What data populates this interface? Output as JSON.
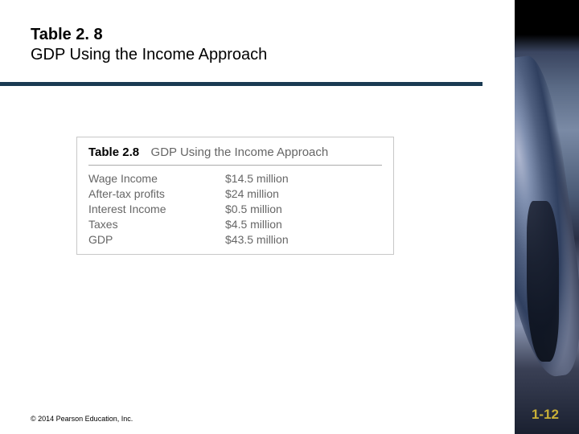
{
  "header": {
    "table_number": "Table 2. 8",
    "title": "GDP Using the Income Approach"
  },
  "divider_color": "#1a3a52",
  "figure": {
    "label": "Table 2.8",
    "caption": "GDP Using the Income Approach",
    "rows": [
      {
        "label": "Wage Income",
        "value": "$14.5 million"
      },
      {
        "label": "After-tax profits",
        "value": "$24 million"
      },
      {
        "label": "Interest Income",
        "value": "$0.5 million"
      },
      {
        "label": "Taxes",
        "value": "$4.5 million"
      },
      {
        "label": "GDP",
        "value": "$43.5 million"
      }
    ]
  },
  "footer": {
    "copyright": "© 2014 Pearson Education, Inc.",
    "page": "1-12"
  },
  "colors": {
    "page_number": "#c9b037",
    "figure_border": "#c8c8c8",
    "figure_text": "#666666"
  }
}
